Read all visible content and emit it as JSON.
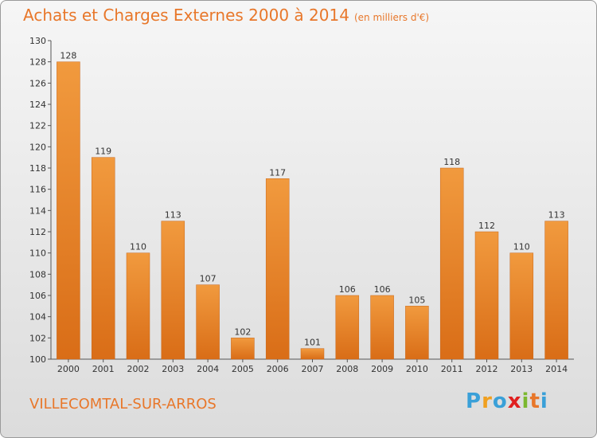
{
  "header": {
    "title": "Achats et Charges Externes 2000 à 2014",
    "subtitle": "(en milliers d'€)"
  },
  "footer": {
    "city": "VILLECOMTAL-SUR-ARROS",
    "logo_letters": [
      "P",
      "r",
      "o",
      "x",
      "i",
      "t",
      "i"
    ],
    "logo_colors": [
      "#3aa0d8",
      "#f0a020",
      "#3aa0d8",
      "#e02020",
      "#7cb82f",
      "#e8772a",
      "#3aa0d8"
    ]
  },
  "chart_data": {
    "type": "bar",
    "title": "Achats et Charges Externes 2000 à 2014",
    "subtitle": "(en milliers d'€)",
    "categories": [
      "2000",
      "2001",
      "2002",
      "2003",
      "2004",
      "2005",
      "2006",
      "2007",
      "2008",
      "2009",
      "2010",
      "2011",
      "2012",
      "2013",
      "2014"
    ],
    "values": [
      128,
      119,
      110,
      113,
      107,
      102,
      117,
      101,
      106,
      106,
      105,
      118,
      112,
      110,
      113
    ],
    "ylim": [
      100,
      130
    ],
    "yticks": [
      100,
      102,
      104,
      106,
      108,
      110,
      112,
      114,
      116,
      118,
      120,
      122,
      124,
      126,
      128,
      130
    ],
    "grid": false,
    "bar_color": "#f19a3e",
    "bar_color_dark": "#d96d17",
    "accent_color": "#e8772a"
  }
}
